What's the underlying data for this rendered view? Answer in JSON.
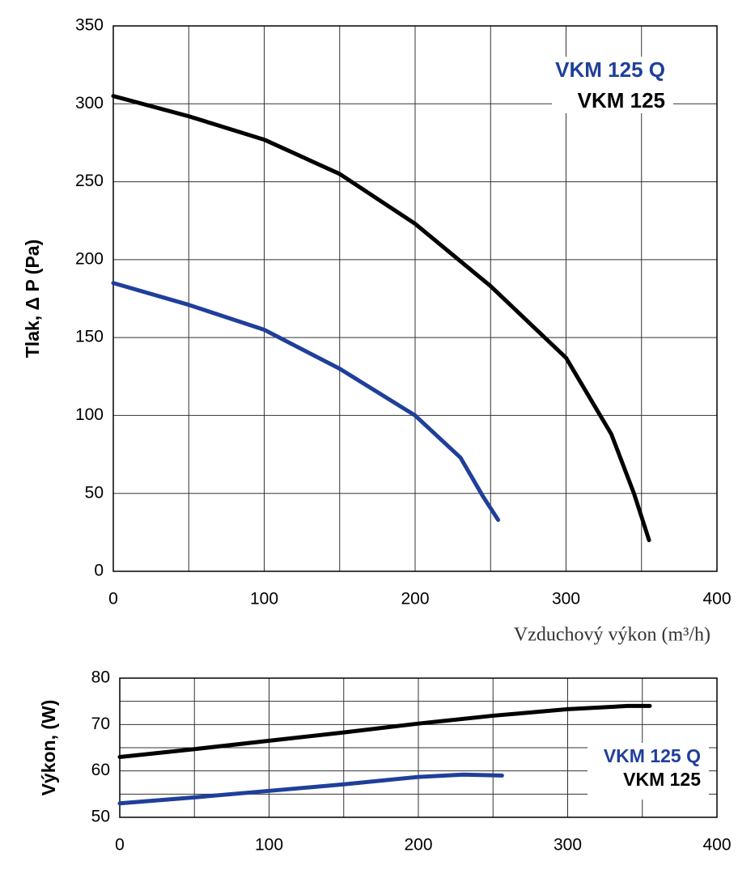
{
  "chart_data": [
    {
      "type": "line",
      "y_label": "Tlak, Δ P (Pa)",
      "x_label": "Vzduchový výkon (m³/h)",
      "xlim": [
        0,
        400
      ],
      "xticks": [
        0,
        100,
        200,
        300,
        400
      ],
      "x_minor_grid": [
        50,
        150,
        250,
        350
      ],
      "ylim": [
        0,
        350
      ],
      "yticks": [
        0,
        50,
        100,
        150,
        200,
        250,
        300,
        350
      ],
      "grid": true,
      "legend": "upper right",
      "series": [
        {
          "name": "VKM 125 Q",
          "color": "#1f3f9a",
          "x": [
            0,
            50,
            100,
            150,
            200,
            230,
            245,
            255
          ],
          "values": [
            185,
            171,
            155,
            130,
            100,
            73,
            48,
            33
          ]
        },
        {
          "name": "VKM 125",
          "color": "#000000",
          "x": [
            0,
            50,
            100,
            150,
            200,
            250,
            300,
            330,
            345,
            355
          ],
          "values": [
            305,
            292,
            277,
            255,
            223,
            183,
            137,
            88,
            50,
            20
          ]
        }
      ]
    },
    {
      "type": "line",
      "y_label": "Výkon, (W)",
      "xlim": [
        0,
        400
      ],
      "xticks": [
        0,
        100,
        200,
        300,
        400
      ],
      "x_minor_grid": [
        50,
        150,
        250,
        350
      ],
      "ylim": [
        50,
        80
      ],
      "yticks": [
        50,
        60,
        70,
        80
      ],
      "y_minor_grid": [
        55,
        65,
        75
      ],
      "grid": true,
      "legend": "lower right",
      "series": [
        {
          "name": "VKM 125 Q",
          "color": "#1f3f9a",
          "x": [
            0,
            50,
            100,
            150,
            200,
            230,
            256
          ],
          "values": [
            53,
            54.3,
            55.7,
            57.1,
            58.7,
            59.2,
            59
          ]
        },
        {
          "name": "VKM 125",
          "color": "#000000",
          "x": [
            0,
            50,
            100,
            150,
            200,
            250,
            300,
            340,
            355
          ],
          "values": [
            63,
            64.7,
            66.5,
            68.3,
            70.2,
            71.9,
            73.3,
            74,
            74
          ]
        }
      ]
    }
  ]
}
